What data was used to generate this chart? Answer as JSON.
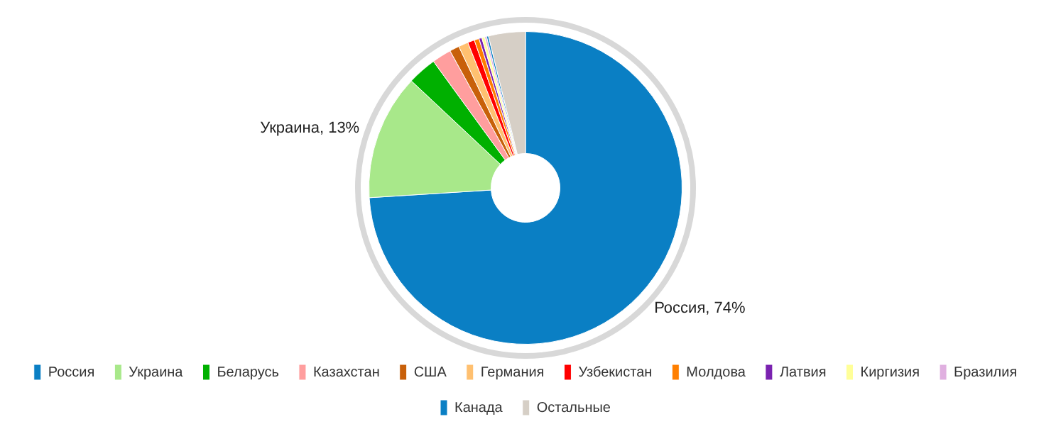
{
  "chart_data": {
    "type": "donut",
    "categories": [
      "Россия",
      "Украина",
      "Беларусь",
      "Казахстан",
      "США",
      "Германия",
      "Узбекистан",
      "Молдова",
      "Латвия",
      "Киргизия",
      "Бразилия",
      "Канада",
      "Остальные"
    ],
    "values": [
      74,
      13,
      3,
      2,
      1,
      1,
      0.7,
      0.5,
      0.3,
      0.3,
      0.2,
      0.2,
      3.8
    ],
    "colors": [
      "#0a7fc4",
      "#a8e88a",
      "#00b000",
      "#ff9e9e",
      "#c8600a",
      "#ffc070",
      "#ff0000",
      "#ff7f00",
      "#7a22b0",
      "#ffff99",
      "#e0b0e0",
      "#0a7fc4",
      "#d6cfc6"
    ],
    "value_labels": [
      "Россия, 74%",
      "Украина, 13%",
      null,
      null,
      null,
      null,
      null,
      null,
      null,
      null,
      null,
      null,
      null
    ],
    "legend": "bottom"
  }
}
